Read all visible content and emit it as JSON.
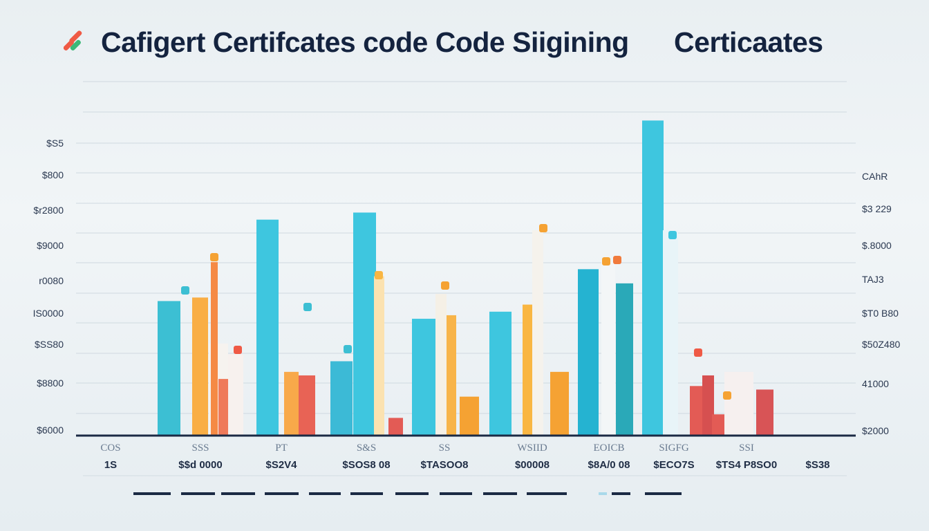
{
  "title": "Cafigert Certifcates code Code Siigining      Certicaates",
  "logo_icon": "brand-stripes-icon",
  "chart_data": {
    "type": "bar",
    "title": "Cafigert Certifcates code Code Siigining      Certicaates",
    "xlabel": "",
    "ylabel": "",
    "ylim": [
      0,
      100
    ],
    "grid": true,
    "legend": "none",
    "y_tick_labels_left": [
      "$S5",
      "$800",
      "$r2800",
      "$9000",
      "r0080",
      "IS0000",
      "$SS80",
      "$8800",
      "$6000"
    ],
    "y_tick_labels_right": [
      "CAhR",
      "$3 229",
      "$.8000",
      "TAJ3",
      "$T0 B80",
      "$50Z480",
      "41000",
      "$2000"
    ],
    "categories_top": [
      "COS",
      "SSS",
      "PT",
      "S&S",
      "SS",
      "WSIID",
      "EOICB",
      "SIGFG",
      "SSI",
      ""
    ],
    "categories_bottom": [
      "1S",
      "$$d 0000",
      "$S2V4",
      "$SOS8 08",
      "$TASOO8",
      "$00008",
      "$8A/0 08",
      "$ECO7S",
      "$TS4 P8SO0",
      "$S38"
    ],
    "colors": {
      "teal": "#3ec6df",
      "teal_dark": "#2aa9b8",
      "orange": "#f9b03c",
      "orange_dark": "#f5a233",
      "salmon": "#ee735b",
      "red": "#e35b55",
      "pale": "#f4f6f6",
      "pale_yellow": "#fbe0a8",
      "axis": "#1b2a44",
      "grid": "#cfd9e0"
    },
    "bars": [
      {
        "value": 38,
        "color": "#3cbfd3"
      },
      {
        "value": 39,
        "color": "#f9ae45"
      },
      {
        "value": 26,
        "color": "#f6f3ef"
      },
      {
        "value": 49,
        "color": "#f58a45"
      },
      {
        "value": 16,
        "color": "#ef7a5a"
      },
      {
        "value": 23,
        "color": "#f7f1ee"
      },
      {
        "value": 61,
        "color": "#3ec6df"
      },
      {
        "value": 18,
        "color": "#f8a94a"
      },
      {
        "value": 17,
        "color": "#e86355"
      },
      {
        "value": 21,
        "color": "#3cbad6"
      },
      {
        "value": 63,
        "color": "#3ec6df"
      },
      {
        "value": 45,
        "color": "#fbe2b0"
      },
      {
        "value": 5,
        "color": "#e35b55"
      },
      {
        "value": 33,
        "color": "#3ec6df"
      },
      {
        "value": 40,
        "color": "#f5f0e6"
      },
      {
        "value": 34,
        "color": "#f8b449"
      },
      {
        "value": 11,
        "color": "#f5a233"
      },
      {
        "value": 35,
        "color": "#3ec6df"
      },
      {
        "value": 37,
        "color": "#f9b642"
      },
      {
        "value": 58,
        "color": "#f5f2ec"
      },
      {
        "value": 18,
        "color": "#f5a233"
      },
      {
        "value": 47,
        "color": "#25b3d1"
      },
      {
        "value": 49,
        "color": "#f3f6f7"
      },
      {
        "value": 43,
        "color": "#2aa9b8"
      },
      {
        "value": 89,
        "color": "#3ec6df"
      },
      {
        "value": 58,
        "color": "#e8f4f8"
      },
      {
        "value": 14,
        "color": "#e35b55"
      },
      {
        "value": 17,
        "color": "#d65050"
      },
      {
        "value": 6,
        "color": "#e35b55"
      },
      {
        "value": 18,
        "color": "#f6f0ef"
      },
      {
        "value": 13,
        "color": "#d85456"
      }
    ]
  }
}
